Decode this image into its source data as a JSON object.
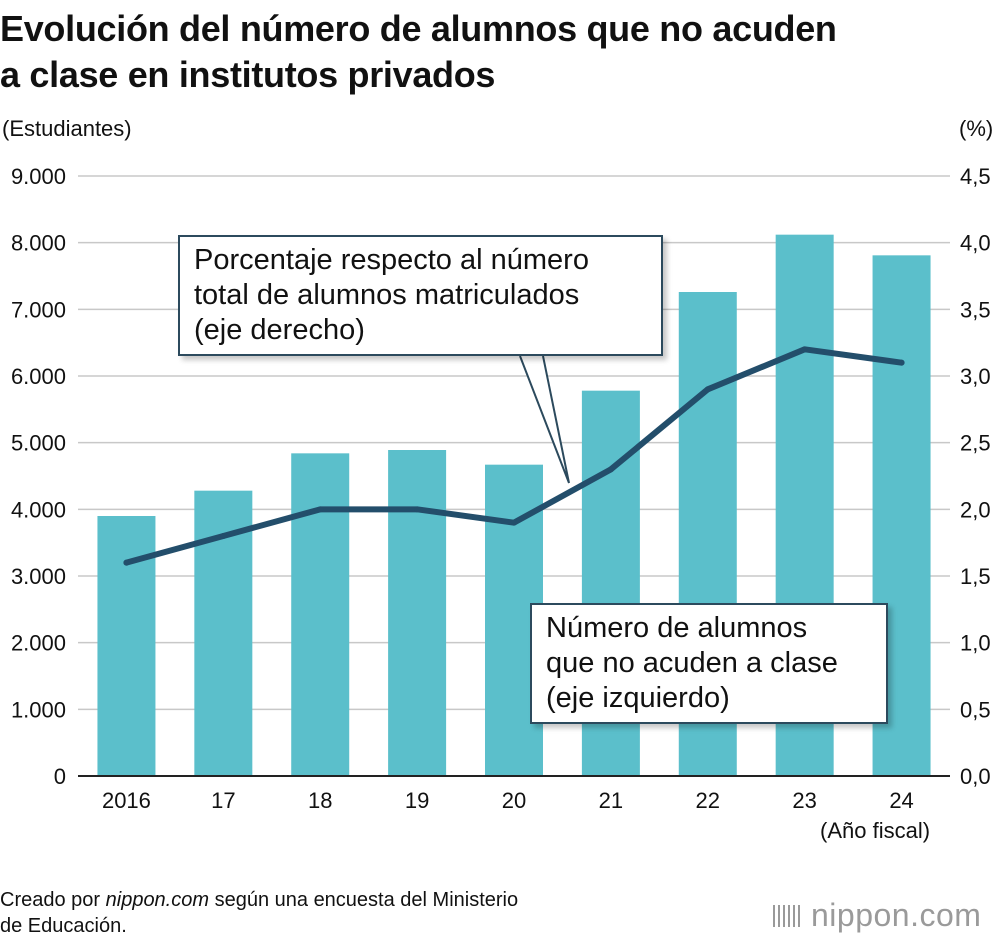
{
  "title_lines": [
    "Evolución del número de alumnos que no acuden",
    "a clase en institutos privados"
  ],
  "left_unit": "(Estudiantes)",
  "right_unit": "(%)",
  "x_unit_note": "(Año fiscal)",
  "callout_rate": [
    "Porcentaje respecto al número",
    "total de alumnos matriculados",
    "(eje derecho)"
  ],
  "callout_count": [
    "Número de alumnos",
    "que no acuden a clase",
    "(eje izquierdo)"
  ],
  "source": {
    "prefix": "Creado por ",
    "site": "nippon.com",
    "rest": " según una encuesta del Ministerio",
    "line2": "de Educación."
  },
  "logo": "nippon.com",
  "colors": {
    "bar": "#5bbfcb",
    "line": "#234e6b",
    "grid": "#c8c8c8"
  },
  "chart_data": {
    "type": "bar+line",
    "categories": [
      "2016",
      "17",
      "18",
      "19",
      "20",
      "21",
      "22",
      "23",
      "24"
    ],
    "series": [
      {
        "name": "Número de alumnos que no acuden a clase (eje izquierdo)",
        "type": "bar",
        "axis": "left",
        "values": [
          3900,
          4280,
          4840,
          4890,
          4670,
          5780,
          7260,
          8120,
          7810
        ]
      },
      {
        "name": "Porcentaje respecto al número total de alumnos matriculados (eje derecho)",
        "type": "line",
        "axis": "right",
        "values": [
          1.6,
          1.8,
          2.0,
          2.0,
          1.9,
          2.3,
          2.9,
          3.2,
          3.1
        ]
      }
    ],
    "left_axis": {
      "label": "(Estudiantes)",
      "ylim": [
        0,
        9000
      ],
      "ticks": [
        0,
        1000,
        2000,
        3000,
        4000,
        5000,
        6000,
        7000,
        8000,
        9000
      ],
      "tick_labels": [
        "0",
        "1.000",
        "2.000",
        "3.000",
        "4.000",
        "5.000",
        "6.000",
        "7.000",
        "8.000",
        "9.000"
      ]
    },
    "right_axis": {
      "label": "(%)",
      "ylim": [
        0,
        4.5
      ],
      "ticks": [
        0,
        0.5,
        1,
        1.5,
        2,
        2.5,
        3,
        3.5,
        4,
        4.5
      ],
      "tick_labels": [
        "0,0",
        "0,5",
        "1,0",
        "1,5",
        "2,0",
        "2,5",
        "3,0",
        "3,5",
        "4,0",
        "4,5"
      ]
    },
    "xlabel": "(Año fiscal)",
    "grid": "horizontal"
  }
}
